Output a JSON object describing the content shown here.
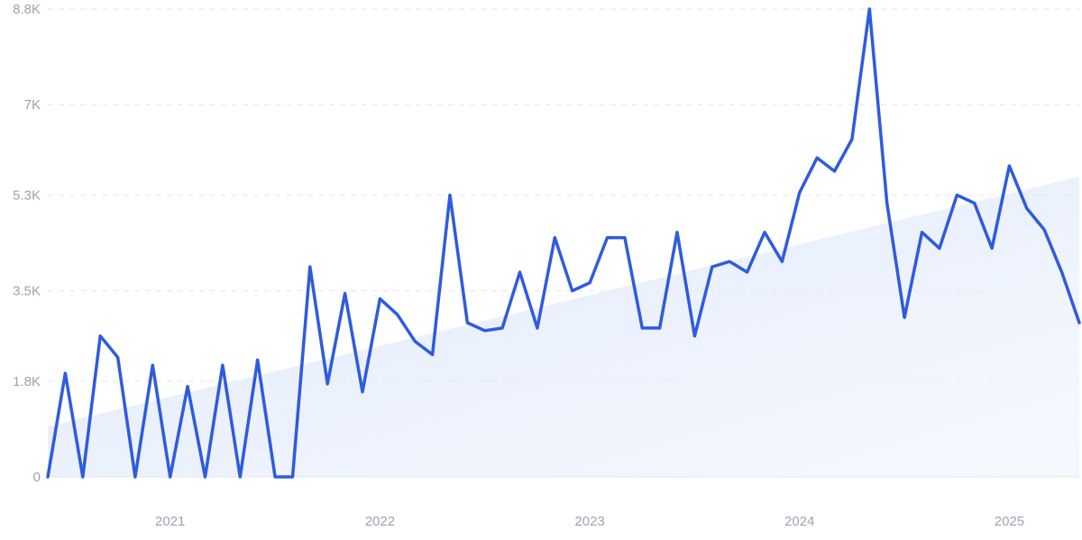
{
  "chart_data": {
    "type": "line",
    "title": "",
    "xlabel": "",
    "ylabel": "",
    "ylim": [
      0,
      8800
    ],
    "xlim": [
      "2020-06",
      "2025-05"
    ],
    "grid": true,
    "y_ticks": [
      {
        "value": 0,
        "label": "0"
      },
      {
        "value": 1800,
        "label": "1.8K"
      },
      {
        "value": 3500,
        "label": "3.5K"
      },
      {
        "value": 5300,
        "label": "5.3K"
      },
      {
        "value": 7000,
        "label": "7K"
      },
      {
        "value": 8800,
        "label": "8.8K"
      }
    ],
    "x_ticks": [
      {
        "value": "2021-01",
        "label": "2021"
      },
      {
        "value": "2022-01",
        "label": "2022"
      },
      {
        "value": "2023-01",
        "label": "2023"
      },
      {
        "value": "2024-01",
        "label": "2024"
      },
      {
        "value": "2025-01",
        "label": "2025"
      }
    ],
    "x": [
      "2020-06",
      "2020-07",
      "2020-08",
      "2020-09",
      "2020-10",
      "2020-11",
      "2020-12",
      "2021-01",
      "2021-02",
      "2021-03",
      "2021-04",
      "2021-05",
      "2021-06",
      "2021-07",
      "2021-08",
      "2021-09",
      "2021-10",
      "2021-11",
      "2021-12",
      "2022-01",
      "2022-02",
      "2022-03",
      "2022-04",
      "2022-05",
      "2022-06",
      "2022-07",
      "2022-08",
      "2022-09",
      "2022-10",
      "2022-11",
      "2022-12",
      "2023-01",
      "2023-02",
      "2023-03",
      "2023-04",
      "2023-05",
      "2023-06",
      "2023-07",
      "2023-08",
      "2023-09",
      "2023-10",
      "2023-11",
      "2023-12",
      "2024-01",
      "2024-02",
      "2024-03",
      "2024-04",
      "2024-05",
      "2024-06",
      "2024-07",
      "2024-08",
      "2024-09",
      "2024-10",
      "2024-11",
      "2024-12",
      "2025-01",
      "2025-02",
      "2025-03",
      "2025-04",
      "2025-05"
    ],
    "series": [
      {
        "color": "#2f5bdf",
        "values": [
          0,
          1950,
          0,
          2650,
          2250,
          0,
          2100,
          0,
          1700,
          0,
          2100,
          0,
          2200,
          0,
          0,
          3950,
          1750,
          3450,
          1600,
          3350,
          3050,
          2550,
          2300,
          5300,
          2900,
          2750,
          2800,
          3850,
          2800,
          4500,
          3500,
          3650,
          4500,
          4500,
          2800,
          2800,
          4600,
          2650,
          3950,
          4050,
          3850,
          4600,
          4050,
          5350,
          6000,
          5750,
          6350,
          8800,
          5150,
          3000,
          4600,
          4300,
          5300,
          5150,
          4300,
          5850,
          5050,
          4650,
          3850,
          2900
        ]
      }
    ],
    "trend": {
      "color": "#dbe7fb",
      "start": 950,
      "end": 5650
    }
  }
}
